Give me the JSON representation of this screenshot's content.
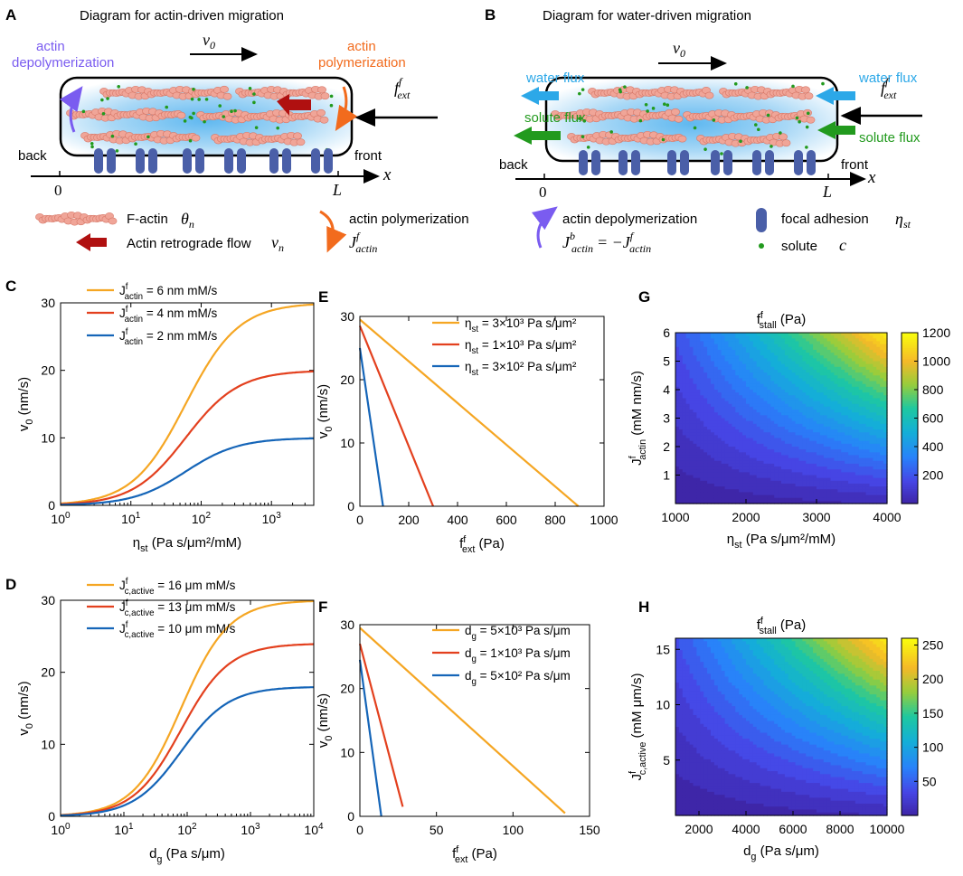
{
  "panel_labels": {
    "A": "A",
    "B": "B",
    "C": "C",
    "D": "D",
    "E": "E",
    "F": "F",
    "G": "G",
    "H": "H"
  },
  "diagram_A": {
    "title": "Diagram for actin-driven migration",
    "actin_depoly": [
      "actin",
      "depolymerization"
    ],
    "actin_poly": [
      "actin",
      "polymerization"
    ],
    "velocity": "v",
    "velocity_sub": "0",
    "force": "f",
    "force_sup": "f",
    "force_sub": "ext",
    "back": "back",
    "front": "front",
    "x": "x",
    "zero": "0",
    "L": "L"
  },
  "diagram_B": {
    "title": "Diagram for water-driven migration",
    "water_flux_left": "water flux",
    "water_flux_right": "water flux",
    "solute_flux_left": "solute flux",
    "solute_flux_right": "solute flux",
    "velocity": "v",
    "velocity_sub": "0",
    "force": "f",
    "force_sup": "f",
    "force_sub": "ext",
    "back": "back",
    "front": "front",
    "x": "x",
    "zero": "0",
    "L": "L"
  },
  "key": {
    "factin": "F-actin",
    "theta": "θ",
    "theta_sub": "n",
    "retro": "Actin retrograde flow",
    "vn": "v",
    "vn_sub": "n",
    "poly": "actin polymerization",
    "Jpoly": "J",
    "Jpoly_sup": "f",
    "Jpoly_sub": "actin",
    "depoly": "actin depolymerization",
    "Jdepoly_lhs": "J",
    "Jdepoly_lhs_sup": "b",
    "Jdepoly_lhs_sub": "actin",
    "Jdepoly_eq": "= −J",
    "Jdepoly_rhs_sup": "f",
    "Jdepoly_rhs_sub": "actin",
    "focal": "focal adhesion",
    "eta": "η",
    "eta_sub": "st",
    "solute": "solute",
    "c": "c"
  },
  "colors": {
    "orange": "#F5A623",
    "red": "#E3401E",
    "blue": "#1565B8",
    "purple": "#7A5CF0",
    "actin_orange": "#F26B1D",
    "darkred": "#B01010",
    "water": "#2CA8E8",
    "solute": "#229A1E",
    "adhesion": "#4A5FA8",
    "fiber": "#F0A598"
  },
  "chart_data": [
    {
      "id": "C",
      "type": "line",
      "xscale": "log",
      "xlim": [
        1,
        4000
      ],
      "ylim": [
        0,
        30
      ],
      "xticks": [
        "10^0",
        "10^1",
        "10^2",
        "10^3"
      ],
      "yticks": [
        "0",
        "10",
        "20",
        "30"
      ],
      "xlabel": "η_st (Pa s/μm²/mM)",
      "ylabel": "v_0 (nm/s)",
      "series": [
        {
          "name": "J^f_actin = 6 nm mM/s",
          "color": "#F5A623",
          "vmax": 30,
          "half": 60
        },
        {
          "name": "J^f_actin = 4 nm mM/s",
          "color": "#E3401E",
          "vmax": 20,
          "half": 60
        },
        {
          "name": "J^f_actin = 2 nm mM/s",
          "color": "#1565B8",
          "vmax": 10,
          "half": 60
        }
      ]
    },
    {
      "id": "D",
      "type": "line",
      "xscale": "log",
      "xlim": [
        1,
        10000
      ],
      "ylim": [
        0,
        30
      ],
      "xticks": [
        "10^0",
        "10^1",
        "10^2",
        "10^3",
        "10^4"
      ],
      "yticks": [
        "0",
        "10",
        "20",
        "30"
      ],
      "xlabel": "d_g (Pa s/μm)",
      "ylabel": "v_0 (nm/s)",
      "series": [
        {
          "name": "J^f_c,active = 16 μm mM/s",
          "color": "#F5A623",
          "vmax": 30,
          "half": 80
        },
        {
          "name": "J^f_c,active = 13 μm mM/s",
          "color": "#E3401E",
          "vmax": 24,
          "half": 80
        },
        {
          "name": "J^f_c,active = 10 μm mM/s",
          "color": "#1565B8",
          "vmax": 18,
          "half": 80
        }
      ]
    },
    {
      "id": "E",
      "type": "line",
      "xlim": [
        0,
        1000
      ],
      "ylim": [
        0,
        30
      ],
      "xticks": [
        "0",
        "200",
        "400",
        "600",
        "800",
        "1000"
      ],
      "yticks": [
        "0",
        "10",
        "20",
        "30"
      ],
      "xlabel": "f^f_ext (Pa)",
      "ylabel": "v_0 (nm/s)",
      "series": [
        {
          "name": "η_st = 3×10³ Pa s/μm²",
          "color": "#F5A623",
          "x": [
            0,
            895
          ],
          "y": [
            29.5,
            0
          ]
        },
        {
          "name": "η_st = 1×10³ Pa s/μm²",
          "color": "#E3401E",
          "x": [
            0,
            300
          ],
          "y": [
            28.5,
            0
          ]
        },
        {
          "name": "η_st = 3×10² Pa s/μm²",
          "color": "#1565B8",
          "x": [
            0,
            95
          ],
          "y": [
            25,
            0
          ]
        }
      ]
    },
    {
      "id": "F",
      "type": "line",
      "xlim": [
        0,
        150
      ],
      "ylim": [
        0,
        30
      ],
      "xticks": [
        "0",
        "50",
        "100",
        "150"
      ],
      "yticks": [
        "0",
        "10",
        "20",
        "30"
      ],
      "xlabel": "f^f_ext (Pa)",
      "ylabel": "v_0 (nm/s)",
      "series": [
        {
          "name": "d_g = 5×10³ Pa s/μm",
          "color": "#F5A623",
          "x": [
            0,
            134
          ],
          "y": [
            29.5,
            0.5
          ]
        },
        {
          "name": "d_g = 1×10³ Pa s/μm",
          "color": "#E3401E",
          "x": [
            0,
            28
          ],
          "y": [
            27,
            1.5
          ]
        },
        {
          "name": "d_g = 5×10² Pa s/μm",
          "color": "#1565B8",
          "x": [
            0,
            14
          ],
          "y": [
            24.5,
            0
          ]
        }
      ]
    },
    {
      "id": "G",
      "type": "heatmap",
      "title": "f^f_stall (Pa)",
      "xlim": [
        1000,
        4000
      ],
      "ylim": [
        0,
        6
      ],
      "xticks": [
        "1000",
        "2000",
        "3000",
        "4000"
      ],
      "yticks": [
        "1",
        "2",
        "3",
        "4",
        "5",
        "6"
      ],
      "xlabel": "η_st (Pa s/μm²/mM)",
      "ylabel": "J^f_actin (mM nm/s)",
      "colorbar": {
        "range": [
          0,
          1200
        ],
        "ticks": [
          "200",
          "400",
          "600",
          "800",
          "1000",
          "1200"
        ]
      }
    },
    {
      "id": "H",
      "type": "heatmap",
      "title": "f^f_stall (Pa)",
      "xlim": [
        1000,
        10000
      ],
      "ylim": [
        0,
        16
      ],
      "xticks": [
        "2000",
        "4000",
        "6000",
        "8000",
        "10000"
      ],
      "yticks": [
        "5",
        "10",
        "15"
      ],
      "xlabel": "d_g (Pa s/μm)",
      "ylabel": "J^f_c,active (mM μm/s)",
      "colorbar": {
        "range": [
          0,
          260
        ],
        "ticks": [
          "50",
          "100",
          "150",
          "200",
          "250"
        ]
      }
    }
  ]
}
